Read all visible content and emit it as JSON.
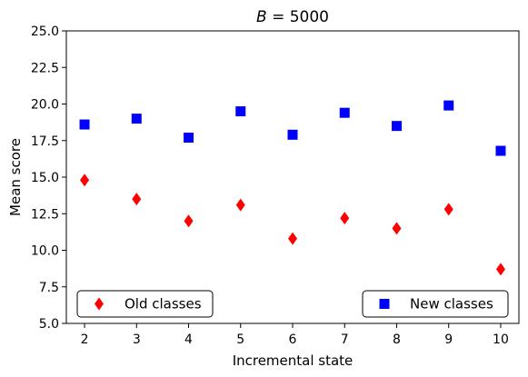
{
  "chart_data": {
    "type": "scatter",
    "title": "B = 5000",
    "xlabel": "Incremental state",
    "ylabel": "Mean score",
    "xlim": [
      1.65,
      10.35
    ],
    "ylim": [
      5.0,
      25.0
    ],
    "x_ticks": [
      2,
      3,
      4,
      5,
      6,
      7,
      8,
      9,
      10
    ],
    "y_ticks": [
      5.0,
      7.5,
      10.0,
      12.5,
      15.0,
      17.5,
      20.0,
      22.5,
      25.0
    ],
    "y_tick_labels": [
      "5.0",
      "7.5",
      "10.0",
      "12.5",
      "15.0",
      "17.5",
      "20.0",
      "22.5",
      "25.0"
    ],
    "grid": false,
    "series": [
      {
        "name": "Old classes",
        "marker": "diamond",
        "color": "#ff0000",
        "legend_position": "lower-left",
        "x": [
          2,
          3,
          4,
          5,
          6,
          7,
          8,
          9,
          10
        ],
        "y": [
          14.8,
          13.5,
          12.0,
          13.1,
          10.8,
          12.2,
          11.5,
          12.8,
          8.7
        ]
      },
      {
        "name": "New classes",
        "marker": "square",
        "color": "#0000ff",
        "legend_position": "lower-right",
        "x": [
          2,
          3,
          4,
          5,
          6,
          7,
          8,
          9,
          10
        ],
        "y": [
          18.6,
          19.0,
          17.7,
          19.5,
          17.9,
          19.4,
          18.5,
          19.9,
          16.8
        ]
      }
    ]
  }
}
